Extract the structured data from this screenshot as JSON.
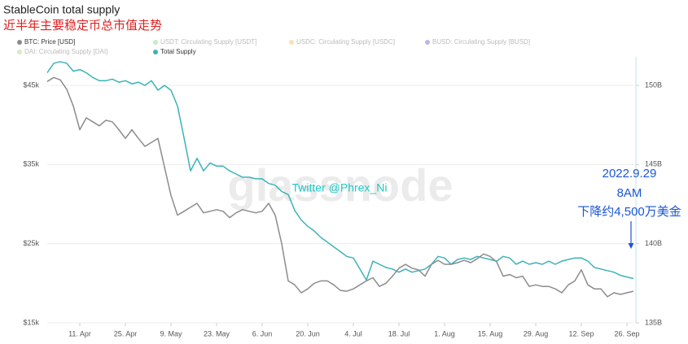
{
  "chart_data": {
    "type": "line",
    "title": "StableCoin total supply",
    "subtitle": "近半年主要稳定币总市值走势",
    "x": [
      "1. Apr",
      "3. Apr",
      "5. Apr",
      "7. Apr",
      "9. Apr",
      "11. Apr",
      "13. Apr",
      "15. Apr",
      "17. Apr",
      "19. Apr",
      "21. Apr",
      "23. Apr",
      "25. Apr",
      "27. Apr",
      "29. Apr",
      "1. May",
      "3. May",
      "5. May",
      "7. May",
      "9. May",
      "11. May",
      "13. May",
      "15. May",
      "17. May",
      "19. May",
      "21. May",
      "23. May",
      "25. May",
      "27. May",
      "29. May",
      "31. May",
      "2. Jun",
      "4. Jun",
      "6. Jun",
      "8. Jun",
      "10. Jun",
      "12. Jun",
      "14. Jun",
      "16. Jun",
      "18. Jun",
      "20. Jun",
      "22. Jun",
      "24. Jun",
      "26. Jun",
      "28. Jun",
      "30. Jun",
      "2. Jul",
      "4. Jul",
      "6. Jul",
      "8. Jul",
      "10. Jul",
      "12. Jul",
      "14. Jul",
      "16. Jul",
      "18. Jul",
      "20. Jul",
      "22. Jul",
      "24. Jul",
      "26. Jul",
      "28. Jul",
      "30. Jul",
      "1. Aug",
      "3. Aug",
      "5. Aug",
      "7. Aug",
      "9. Aug",
      "11. Aug",
      "13. Aug",
      "15. Aug",
      "17. Aug",
      "19. Aug",
      "21. Aug",
      "23. Aug",
      "25. Aug",
      "27. Aug",
      "29. Aug",
      "31. Aug",
      "2. Sep",
      "4. Sep",
      "6. Sep",
      "8. Sep",
      "10. Sep",
      "12. Sep",
      "14. Sep",
      "16. Sep",
      "18. Sep",
      "20. Sep",
      "22. Sep",
      "24. Sep",
      "26. Sep",
      "28. Sep"
    ],
    "xticks": [
      "11. Apr",
      "25. Apr",
      "9. May",
      "23. May",
      "6. Jun",
      "20. Jun",
      "4. Jul",
      "18. Jul",
      "1. Aug",
      "15. Aug",
      "29. Aug",
      "12. Sep",
      "26. Sep"
    ],
    "series": [
      {
        "name": "BTC: Price [USD]",
        "color": "#8c8c8c",
        "axis": "y",
        "values": [
          45500,
          46000,
          45700,
          44500,
          42400,
          39400,
          40900,
          40400,
          39900,
          40600,
          40400,
          39400,
          38300,
          39400,
          38300,
          37300,
          37800,
          38300,
          34700,
          31100,
          28600,
          29100,
          29600,
          30100,
          28900,
          29100,
          29300,
          29100,
          28300,
          28900,
          29300,
          29100,
          28900,
          29100,
          30100,
          28600,
          25000,
          20300,
          19800,
          18800,
          19300,
          20000,
          20300,
          20300,
          19800,
          19100,
          19000,
          19300,
          19800,
          20300,
          20700,
          19600,
          20000,
          20900,
          21900,
          22400,
          21900,
          21700,
          20900,
          22400,
          22900,
          22400,
          22400,
          22600,
          22900,
          22600,
          23100,
          23700,
          23400,
          22700,
          20900,
          21100,
          20700,
          20900,
          19600,
          19800,
          19600,
          19600,
          19300,
          18800,
          19800,
          20300,
          21700,
          19800,
          19300,
          19300,
          18300,
          18800,
          18600,
          18800,
          19000
        ]
      },
      {
        "name": "Total Supply",
        "color": "#3bb3b8",
        "axis": "y2",
        "values": [
          150.8,
          151.4,
          151.5,
          151.4,
          150.9,
          151.0,
          150.8,
          150.5,
          150.3,
          150.3,
          150.4,
          150.2,
          150.3,
          150.1,
          150.2,
          150.0,
          150.3,
          149.7,
          150.0,
          149.7,
          148.7,
          146.7,
          144.6,
          145.4,
          144.6,
          145.1,
          144.9,
          144.9,
          144.6,
          144.4,
          144.2,
          144.2,
          144.1,
          144.1,
          143.8,
          143.7,
          143.3,
          143.1,
          142.1,
          141.5,
          141.1,
          140.8,
          140.4,
          140.1,
          139.8,
          139.5,
          139.2,
          139.1,
          138.4,
          137.7,
          138.9,
          138.7,
          138.5,
          138.4,
          138.2,
          138.4,
          138.2,
          138.3,
          138.4,
          138.7,
          139.2,
          139.1,
          138.7,
          139.0,
          139.1,
          139.0,
          139.2,
          139.1,
          139.0,
          138.9,
          139.2,
          139.1,
          138.7,
          138.9,
          138.7,
          138.8,
          138.7,
          138.9,
          138.7,
          138.9,
          139.0,
          139.1,
          139.1,
          138.9,
          138.5,
          138.4,
          138.3,
          138.2,
          138.0,
          137.9,
          137.8
        ]
      }
    ],
    "hidden_series": [
      {
        "name": "USDT: Circulating Supply [USDT]",
        "color": "#9be29b"
      },
      {
        "name": "USDC: Circulating Supply [USDC]",
        "color": "#f5cf7d"
      },
      {
        "name": "BUSD: Circulating Supply [BUSD]",
        "color": "#8a8ad8"
      },
      {
        "name": "DAI: Circulating Supply [DAI]",
        "color": "#b7e59b"
      }
    ],
    "ylim": [
      15000,
      48600
    ],
    "yticks": [
      {
        "value": 15000,
        "label": "$15k"
      },
      {
        "value": 25000,
        "label": "$25k"
      },
      {
        "value": 35000,
        "label": "$35k"
      },
      {
        "value": 45000,
        "label": "$45k"
      }
    ],
    "y2lim": [
      135,
      151.8
    ],
    "y2ticks": [
      {
        "value": 135,
        "label": "135B"
      },
      {
        "value": 140,
        "label": "140B"
      },
      {
        "value": 145,
        "label": "145B"
      },
      {
        "value": 150,
        "label": "150B"
      }
    ],
    "grid": true,
    "annotations": [
      "2022.9.29",
      "8AM",
      "下降约4,500万美金"
    ],
    "watermark": "glassnode",
    "credit": "Twitter @Phrex_Ni"
  }
}
